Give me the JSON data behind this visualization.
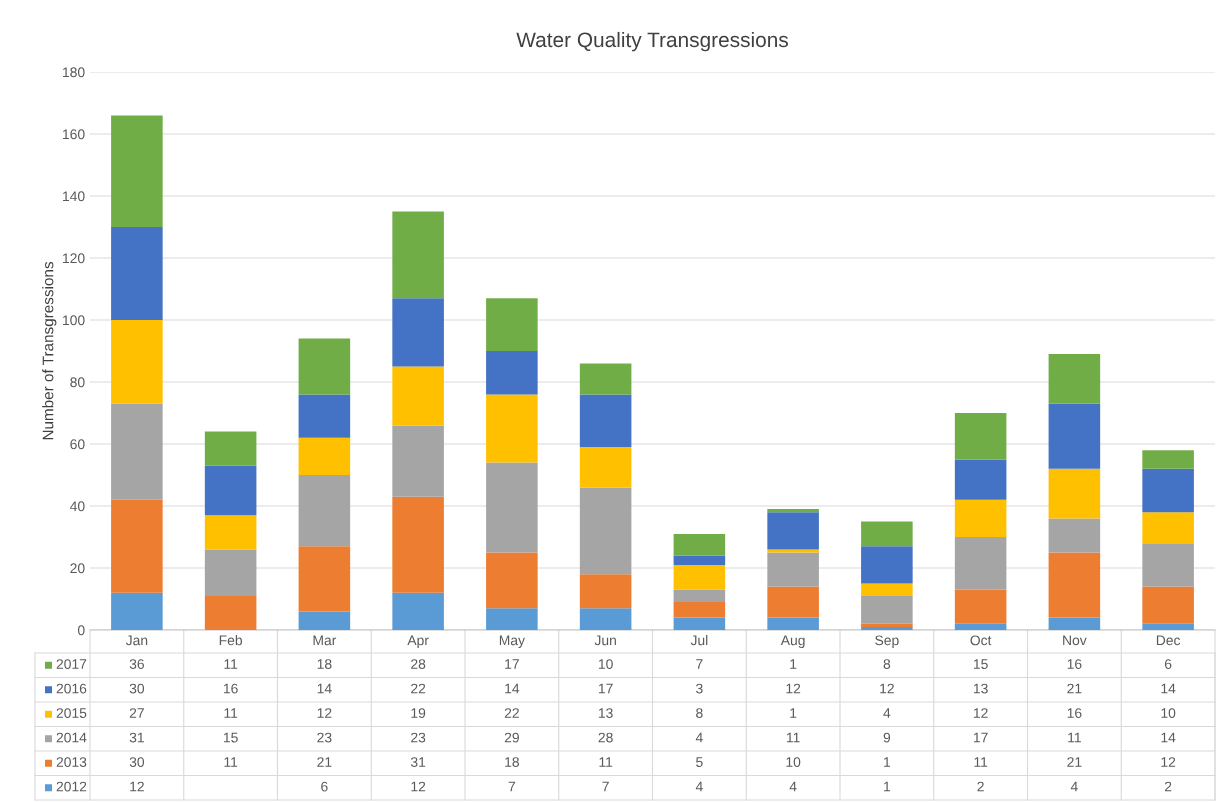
{
  "chart_data": {
    "type": "bar",
    "title": "Water Quality Transgressions",
    "ylabel": "Number of Transgressions",
    "categories": [
      "Jan",
      "Feb",
      "Mar",
      "Apr",
      "May",
      "Jun",
      "Jul",
      "Aug",
      "Sep",
      "Oct",
      "Nov",
      "Dec"
    ],
    "stacked": true,
    "ylim": [
      0,
      180
    ],
    "yticks": [
      0,
      20,
      40,
      60,
      80,
      100,
      120,
      140,
      160,
      180
    ],
    "grid": "y",
    "legend": "bottom",
    "data_labels": true,
    "series": [
      {
        "name": "2012",
        "color": "#5b9bd5",
        "values": [
          12,
          null,
          6,
          12,
          7,
          7,
          4,
          4,
          1,
          2,
          4,
          2
        ]
      },
      {
        "name": "2013",
        "color": "#ed7d31",
        "values": [
          30,
          11,
          21,
          31,
          18,
          11,
          5,
          10,
          1,
          11,
          21,
          12
        ]
      },
      {
        "name": "2014",
        "color": "#a5a5a5",
        "values": [
          31,
          15,
          23,
          23,
          29,
          28,
          4,
          11,
          9,
          17,
          11,
          14
        ]
      },
      {
        "name": "2015",
        "color": "#ffc000",
        "values": [
          27,
          11,
          12,
          19,
          22,
          13,
          8,
          1,
          4,
          12,
          16,
          10
        ]
      },
      {
        "name": "2016",
        "color": "#4472c4",
        "values": [
          30,
          16,
          14,
          22,
          14,
          17,
          3,
          12,
          12,
          13,
          21,
          14
        ]
      },
      {
        "name": "2017",
        "color": "#70ad47",
        "values": [
          36,
          11,
          18,
          28,
          17,
          10,
          7,
          1,
          8,
          15,
          16,
          6
        ]
      }
    ]
  }
}
